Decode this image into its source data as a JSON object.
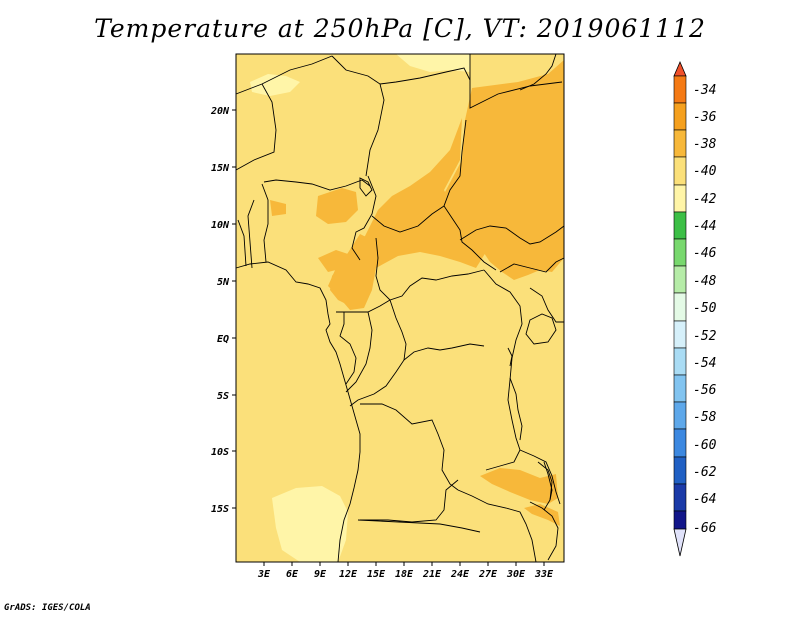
{
  "title": "Temperature at 250hPa [C], VT: 2019061112",
  "credit": "GrADS: IGES/COLA",
  "lat_labels": [
    "20N",
    "15N",
    "10N",
    "5N",
    "EQ",
    "5S",
    "10S",
    "15S"
  ],
  "lon_labels": [
    "3E",
    "6E",
    "9E",
    "12E",
    "15E",
    "18E",
    "21E",
    "24E",
    "27E",
    "30E",
    "33E"
  ],
  "colorbar": {
    "labels": [
      "-34",
      "-36",
      "-38",
      "-40",
      "-42",
      "-44",
      "-46",
      "-48",
      "-50",
      "-52",
      "-54",
      "-56",
      "-58",
      "-60",
      "-62",
      "-64",
      "-66"
    ],
    "colors": {
      "gt_-34": "#f0502a",
      "-36_-34": "#f57a14",
      "-38_-36": "#f5a01e",
      "-40_-38": "#f7b83a",
      "-42_-40": "#fbe07a",
      "-44_-42": "#fff5a8",
      "-46_-44": "#3cbf46",
      "-48_-46": "#78d86e",
      "-50_-48": "#b6eca8",
      "-52_-50": "#e4fae6",
      "-54_-52": "#d6f0fa",
      "-56_-54": "#aadcf4",
      "-58_-56": "#82c4f0",
      "-60_-58": "#5ea8ea",
      "-62_-60": "#3c88e0",
      "-64_-62": "#2060c4",
      "-66_-64": "#12168a",
      "lt_-66": "#e0e2fa"
    }
  },
  "field_colors": {
    "base": "#fbe07a",
    "warm": "#f7b83a",
    "cool": "#fff5a8"
  }
}
